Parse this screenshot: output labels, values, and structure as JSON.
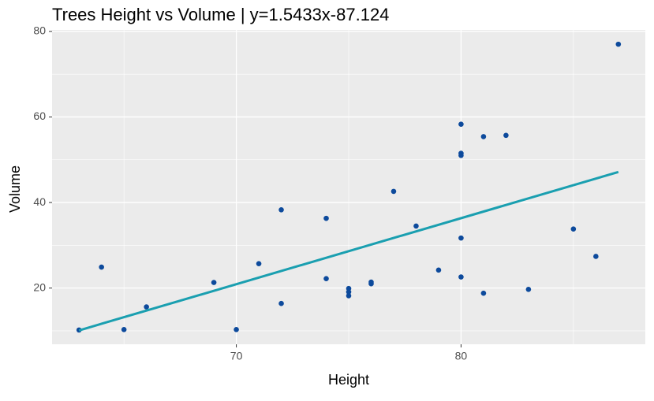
{
  "chart_data": {
    "type": "scatter",
    "title": "Trees Height vs Volume | y=1.5433x-87.124",
    "x_label": "Height",
    "y_label": "Volume",
    "series": [
      {
        "type": "scatter",
        "color": "#0d4a9c",
        "x": [
          70,
          65,
          63,
          72,
          81,
          83,
          66,
          75,
          80,
          75,
          79,
          76,
          76,
          69,
          75,
          74,
          85,
          86,
          71,
          64,
          78,
          80,
          74,
          72,
          77,
          81,
          82,
          80,
          80,
          80,
          87
        ],
        "values": [
          10.3,
          10.3,
          10.2,
          16.4,
          18.8,
          19.7,
          15.6,
          18.2,
          22.6,
          19.9,
          24.2,
          21.0,
          21.4,
          21.3,
          19.1,
          22.2,
          33.8,
          27.4,
          25.7,
          24.9,
          34.5,
          31.7,
          36.3,
          38.3,
          42.6,
          55.4,
          55.7,
          58.3,
          51.5,
          51.0,
          77.0
        ]
      },
      {
        "type": "line",
        "color": "#1a9fb0",
        "x": [
          63,
          87
        ],
        "values": [
          10.104,
          47.143
        ]
      }
    ],
    "xlim": [
      61.8,
      88.2
    ],
    "ylim": [
      6.86,
      80.34
    ],
    "xticks": [
      70,
      80
    ],
    "yticks": [
      20,
      40,
      60,
      80
    ],
    "x_minor_ticks": [
      65,
      75,
      85
    ],
    "y_minor_ticks": [
      10,
      30,
      50,
      70
    ],
    "grid": true
  }
}
